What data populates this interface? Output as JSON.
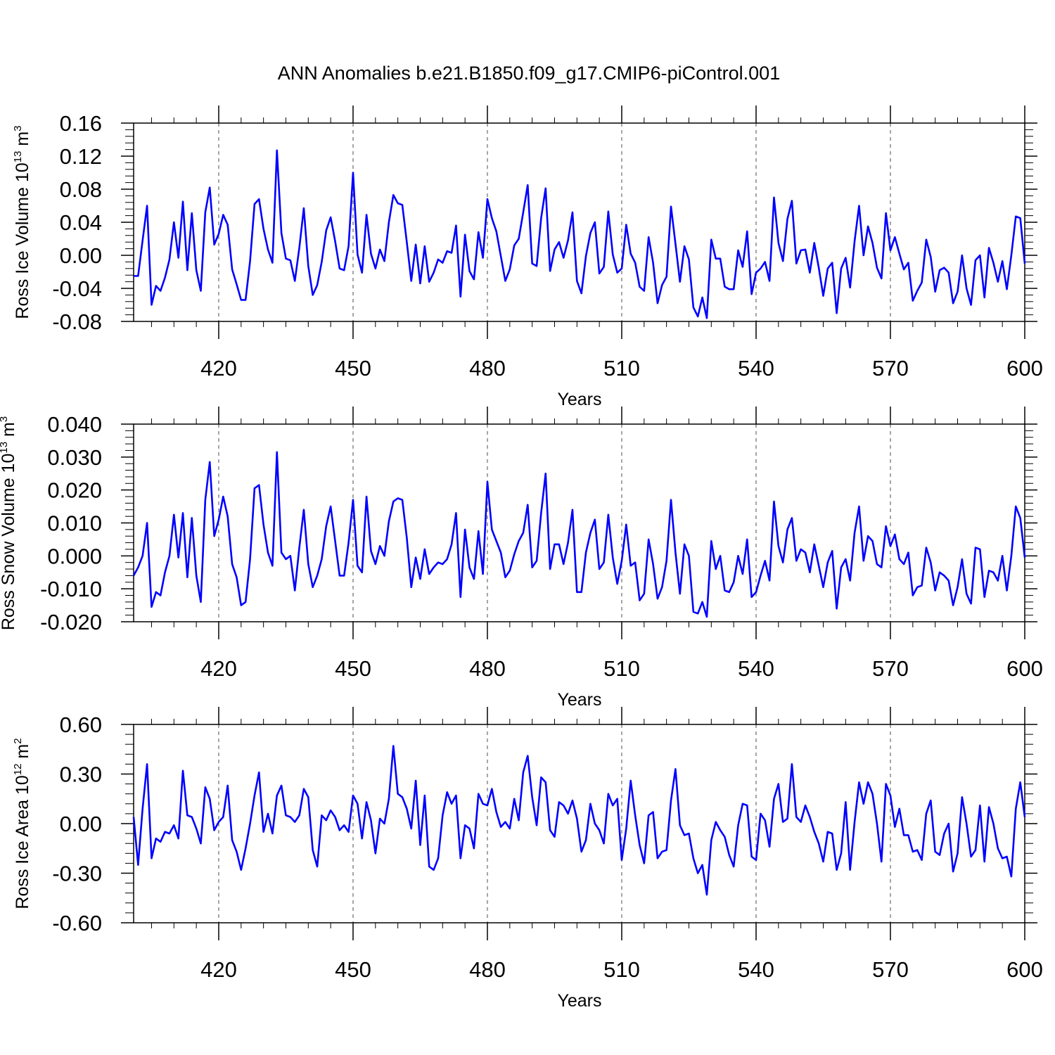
{
  "figure_title": "ANN Anomalies b.e21.B1850.f09_g17.CMIP6-piControl.001",
  "line_color": "#0000ff",
  "chart_data": [
    {
      "type": "line",
      "ylabel_main": "Ross Ice Volume 10",
      "ylabel_sup1": "13",
      "ylabel_mid": " m",
      "ylabel_sup2": "3",
      "xlabel": "Years",
      "xlim": [
        401,
        600
      ],
      "ylim": [
        -0.08,
        0.16
      ],
      "xticks": [
        420,
        450,
        480,
        510,
        540,
        570,
        600
      ],
      "xtick_labels": [
        "420",
        "450",
        "480",
        "510",
        "540",
        "570",
        "600"
      ],
      "yticks": [
        -0.08,
        -0.04,
        0.0,
        0.04,
        0.08,
        0.12,
        0.16
      ],
      "ytick_labels": [
        "-0.08",
        "-0.04",
        "0.00",
        "0.04",
        "0.08",
        "0.12",
        "0.16"
      ],
      "grid": "dashed vertical lines at x ticks",
      "x_start": 401,
      "y": [
        -0.025,
        -0.025,
        0.018,
        0.06,
        -0.06,
        -0.037,
        -0.043,
        -0.027,
        -0.005,
        0.04,
        -0.003,
        0.065,
        -0.018,
        0.051,
        -0.018,
        -0.043,
        0.052,
        0.082,
        0.013,
        0.026,
        0.049,
        0.037,
        -0.017,
        -0.035,
        -0.054,
        -0.054,
        -0.007,
        0.062,
        0.068,
        0.032,
        0.007,
        -0.009,
        0.127,
        0.027,
        -0.004,
        -0.006,
        -0.031,
        0.009,
        0.057,
        -0.013,
        -0.048,
        -0.036,
        -0.008,
        0.03,
        0.046,
        0.017,
        -0.016,
        -0.018,
        0.011,
        0.1,
        0.001,
        -0.021,
        0.049,
        0.002,
        -0.016,
        0.007,
        -0.007,
        0.04,
        0.073,
        0.063,
        0.061,
        0.016,
        -0.031,
        0.013,
        -0.034,
        0.011,
        -0.032,
        -0.021,
        -0.005,
        -0.009,
        0.005,
        0.003,
        0.036,
        -0.05,
        0.025,
        -0.019,
        -0.029,
        0.028,
        -0.003,
        0.068,
        0.045,
        0.029,
        -0.001,
        -0.031,
        -0.017,
        0.012,
        0.02,
        0.052,
        0.085,
        -0.01,
        -0.013,
        0.045,
        0.081,
        -0.019,
        0.007,
        0.016,
        -0.003,
        0.018,
        0.052,
        -0.031,
        -0.046,
        -0.001,
        0.027,
        0.04,
        -0.022,
        -0.014,
        0.053,
        0.001,
        -0.021,
        -0.016,
        0.037,
        0.002,
        -0.009,
        -0.038,
        -0.043,
        0.022,
        -0.009,
        -0.058,
        -0.036,
        -0.026,
        0.059,
        0.014,
        -0.032,
        0.011,
        -0.005,
        -0.063,
        -0.074,
        -0.051,
        -0.076,
        0.019,
        -0.004,
        -0.004,
        -0.038,
        -0.041,
        -0.041,
        0.006,
        -0.014,
        0.029,
        -0.047,
        -0.021,
        -0.016,
        -0.008,
        -0.031,
        0.07,
        0.015,
        -0.007,
        0.044,
        0.066,
        -0.01,
        0.006,
        0.007,
        -0.021,
        0.015,
        -0.015,
        -0.049,
        -0.016,
        -0.009,
        -0.07,
        -0.016,
        -0.003,
        -0.039,
        0.017,
        0.06,
        0.0,
        0.035,
        0.015,
        -0.015,
        -0.028,
        0.051,
        0.006,
        0.022,
        0.002,
        -0.017,
        -0.009,
        -0.055,
        -0.043,
        -0.033,
        0.019,
        -0.002,
        -0.044,
        -0.018,
        -0.015,
        -0.021,
        -0.058,
        -0.044,
        0.0,
        -0.04,
        -0.06,
        -0.006,
        0.0,
        -0.051,
        0.009,
        -0.009,
        -0.032,
        -0.007,
        -0.041,
        0.0,
        0.047,
        0.045,
        -0.01
      ]
    },
    {
      "type": "line",
      "ylabel_main": "Ross Snow Volume 10",
      "ylabel_sup1": "13",
      "ylabel_mid": " m",
      "ylabel_sup2": "3",
      "xlabel": "Years",
      "xlim": [
        401,
        600
      ],
      "ylim": [
        -0.02,
        0.04
      ],
      "xticks": [
        420,
        450,
        480,
        510,
        540,
        570,
        600
      ],
      "xtick_labels": [
        "420",
        "450",
        "480",
        "510",
        "540",
        "570",
        "600"
      ],
      "yticks": [
        -0.02,
        -0.01,
        0.0,
        0.01,
        0.02,
        0.03,
        0.04
      ],
      "ytick_labels": [
        "-0.020",
        "-0.010",
        "0.000",
        "0.010",
        "0.020",
        "0.030",
        "0.040"
      ],
      "grid": "dashed vertical lines at x ticks",
      "x_start": 401,
      "y": [
        -0.006,
        -0.0035,
        0.0,
        0.01,
        -0.0155,
        -0.011,
        -0.012,
        -0.005,
        0.0,
        0.0125,
        -0.0005,
        0.013,
        -0.0065,
        0.0115,
        -0.006,
        -0.014,
        0.017,
        0.0285,
        0.006,
        0.011,
        0.018,
        0.012,
        -0.0025,
        -0.0065,
        -0.015,
        -0.014,
        -0.001,
        0.0205,
        0.0215,
        0.0095,
        0.001,
        -0.003,
        0.0315,
        0.001,
        -0.001,
        0.0,
        -0.0105,
        0.0025,
        0.014,
        -0.0025,
        -0.0095,
        -0.006,
        -0.001,
        0.009,
        0.015,
        0.0045,
        -0.006,
        -0.006,
        0.004,
        0.017,
        -0.003,
        -0.005,
        0.018,
        0.0015,
        -0.0025,
        0.003,
        0.0,
        0.0105,
        0.0165,
        0.0175,
        0.017,
        0.0055,
        -0.0095,
        -0.0005,
        -0.007,
        0.002,
        -0.0055,
        -0.0035,
        -0.002,
        -0.0025,
        -0.001,
        0.0035,
        0.013,
        -0.0125,
        0.008,
        -0.0035,
        -0.007,
        0.0075,
        -0.0055,
        0.0225,
        0.008,
        0.0045,
        0.001,
        -0.0065,
        -0.0045,
        0.0005,
        0.0045,
        0.007,
        0.0155,
        -0.0035,
        -0.0015,
        0.013,
        0.025,
        -0.004,
        0.0035,
        0.0035,
        -0.0025,
        0.004,
        0.014,
        -0.011,
        -0.011,
        0.001,
        0.007,
        0.011,
        -0.004,
        -0.002,
        0.0125,
        -0.0005,
        -0.0085,
        -0.0015,
        0.0095,
        -0.003,
        -0.002,
        -0.0135,
        -0.0115,
        0.005,
        -0.0025,
        -0.013,
        -0.0095,
        -0.0015,
        0.017,
        0.001,
        -0.0115,
        0.0035,
        0.0,
        -0.017,
        -0.0175,
        -0.014,
        -0.0185,
        0.0045,
        -0.004,
        0.0,
        -0.0105,
        -0.011,
        -0.008,
        0.0,
        -0.0055,
        0.005,
        -0.0125,
        -0.011,
        -0.006,
        -0.0015,
        -0.0075,
        0.0165,
        0.003,
        -0.002,
        0.008,
        0.0115,
        -0.0015,
        0.002,
        0.001,
        -0.005,
        0.0035,
        -0.003,
        -0.0095,
        -0.002,
        0.0015,
        -0.016,
        -0.0035,
        -0.001,
        -0.0075,
        0.007,
        0.015,
        -0.0015,
        0.006,
        0.0045,
        -0.0025,
        -0.0035,
        0.009,
        0.003,
        0.0065,
        -0.001,
        -0.0025,
        0.001,
        -0.012,
        -0.0095,
        -0.009,
        0.0025,
        -0.002,
        -0.0105,
        -0.005,
        -0.006,
        -0.0075,
        -0.015,
        -0.0095,
        -0.001,
        -0.0115,
        -0.0145,
        0.0025,
        0.002,
        -0.0125,
        -0.0045,
        -0.005,
        -0.0075,
        0.0,
        -0.0105,
        0.0,
        0.015,
        0.0115,
        -0.0005
      ]
    },
    {
      "type": "line",
      "ylabel_main": "Ross Ice Area 10",
      "ylabel_sup1": "12",
      "ylabel_mid": " m",
      "ylabel_sup2": "2",
      "xlabel": "Years",
      "xlim": [
        401,
        600
      ],
      "ylim": [
        -0.6,
        0.6
      ],
      "xticks": [
        420,
        450,
        480,
        510,
        540,
        570,
        600
      ],
      "xtick_labels": [
        "420",
        "450",
        "480",
        "510",
        "540",
        "570",
        "600"
      ],
      "yticks": [
        -0.6,
        -0.3,
        0.0,
        0.3,
        0.6
      ],
      "ytick_labels": [
        "-0.60",
        "-0.30",
        "0.00",
        "0.30",
        "0.60"
      ],
      "grid": "dashed vertical lines at x ticks",
      "x_start": 401,
      "y": [
        0.04,
        -0.25,
        0.09,
        0.36,
        -0.21,
        -0.09,
        -0.11,
        -0.05,
        -0.06,
        -0.01,
        -0.09,
        0.32,
        0.05,
        0.04,
        -0.03,
        -0.12,
        0.22,
        0.15,
        -0.04,
        0.01,
        0.04,
        0.23,
        -0.1,
        -0.17,
        -0.28,
        -0.15,
        0.0,
        0.17,
        0.31,
        -0.05,
        0.06,
        -0.06,
        0.17,
        0.23,
        0.05,
        0.04,
        0.01,
        0.05,
        0.21,
        0.16,
        -0.16,
        -0.26,
        0.05,
        0.02,
        0.08,
        0.04,
        -0.04,
        -0.01,
        -0.05,
        0.17,
        0.12,
        -0.09,
        0.13,
        0.02,
        -0.18,
        0.03,
        0.0,
        0.15,
        0.47,
        0.18,
        0.16,
        0.09,
        -0.03,
        0.26,
        -0.13,
        0.17,
        -0.26,
        -0.28,
        -0.21,
        0.05,
        0.19,
        0.12,
        0.17,
        -0.21,
        -0.01,
        -0.03,
        -0.15,
        0.18,
        0.12,
        0.11,
        0.21,
        0.07,
        -0.02,
        0.01,
        -0.03,
        0.15,
        0.02,
        0.31,
        0.41,
        0.16,
        -0.01,
        0.28,
        0.25,
        -0.04,
        -0.08,
        0.13,
        0.11,
        0.06,
        0.14,
        0.03,
        -0.17,
        -0.1,
        0.12,
        0.0,
        -0.04,
        -0.12,
        0.18,
        0.11,
        0.15,
        -0.22,
        -0.03,
        0.26,
        0.05,
        -0.13,
        -0.24,
        0.05,
        0.07,
        -0.21,
        -0.17,
        -0.16,
        0.14,
        0.33,
        -0.01,
        -0.07,
        -0.06,
        -0.21,
        -0.3,
        -0.25,
        -0.43,
        -0.1,
        0.01,
        -0.04,
        -0.08,
        -0.19,
        -0.26,
        -0.01,
        0.12,
        0.11,
        -0.2,
        -0.22,
        0.06,
        0.02,
        -0.14,
        0.15,
        0.24,
        0.01,
        0.03,
        0.36,
        0.04,
        0.01,
        0.11,
        0.04,
        -0.05,
        -0.12,
        -0.23,
        -0.05,
        -0.06,
        -0.28,
        -0.18,
        0.13,
        -0.28,
        0.01,
        0.25,
        0.12,
        0.25,
        0.18,
        0.0,
        -0.23,
        0.24,
        0.17,
        -0.02,
        0.09,
        -0.07,
        -0.07,
        -0.17,
        -0.16,
        -0.22,
        0.06,
        0.14,
        -0.17,
        -0.19,
        -0.06,
        0.0,
        -0.29,
        -0.18,
        0.16,
        0.0,
        -0.2,
        -0.16,
        0.11,
        -0.23,
        0.1,
        0.0,
        -0.15,
        -0.21,
        -0.2,
        -0.32,
        0.09,
        0.25,
        0.04
      ]
    }
  ]
}
